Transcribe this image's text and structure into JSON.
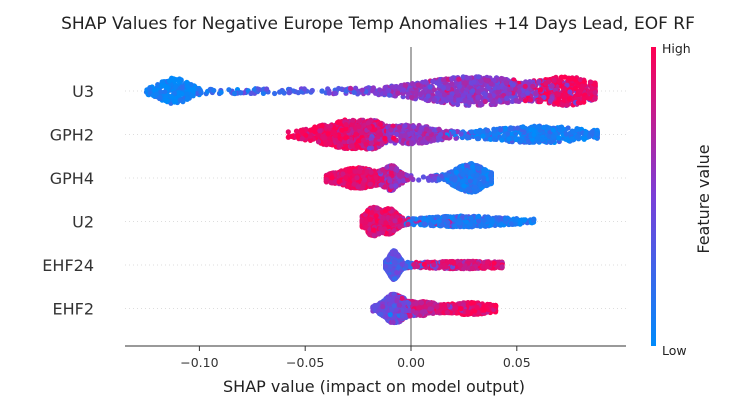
{
  "chart_data": {
    "type": "scatter",
    "title": "SHAP Values for Negative Europe Temp Anomalies +14 Days Lead, EOF RF",
    "xlabel": "SHAP value (impact on model output)",
    "xlim": [
      -0.135,
      0.095
    ],
    "xticks": [
      -0.1,
      -0.05,
      0.0,
      0.05
    ],
    "xtick_labels": [
      "−0.10",
      "−0.05",
      "0.00",
      "0.05"
    ],
    "features": [
      "U3",
      "GPH2",
      "GPH4",
      "U2",
      "EHF24",
      "EHF2"
    ],
    "colorbar": {
      "label": "Feature value",
      "high_label": "High",
      "low_label": "Low",
      "low_color": "#008bfb",
      "high_color": "#ff0052"
    },
    "rows": [
      {
        "feature": "U3",
        "min": -0.125,
        "max": 0.087,
        "mode": 0.03,
        "mode_width": 0.022,
        "clusters": [
          {
            "at": -0.112,
            "width": 0.006,
            "weight": 0.12,
            "value": 0.05
          },
          {
            "at": 0.03,
            "width": 0.022,
            "weight": 0.5,
            "value": 0.55
          },
          {
            "at": 0.075,
            "width": 0.01,
            "weight": 0.2,
            "value": 0.95
          }
        ]
      },
      {
        "feature": "GPH2",
        "min": -0.058,
        "max": 0.088,
        "mode": -0.022,
        "mode_width": 0.008,
        "clusters": [
          {
            "at": -0.035,
            "width": 0.01,
            "weight": 0.25,
            "value": 0.95
          },
          {
            "at": -0.022,
            "width": 0.006,
            "weight": 0.2,
            "value": 0.85
          },
          {
            "at": 0.0,
            "width": 0.01,
            "weight": 0.2,
            "value": 0.6
          },
          {
            "at": 0.06,
            "width": 0.018,
            "weight": 0.3,
            "value": 0.1
          }
        ]
      },
      {
        "feature": "GPH4",
        "min": -0.04,
        "max": 0.038,
        "mode": -0.01,
        "mode_width": 0.003,
        "clusters": [
          {
            "at": -0.025,
            "width": 0.008,
            "weight": 0.35,
            "value": 0.92
          },
          {
            "at": -0.009,
            "width": 0.003,
            "weight": 0.15,
            "value": 0.65
          },
          {
            "at": 0.028,
            "width": 0.006,
            "weight": 0.4,
            "value": 0.12
          }
        ]
      },
      {
        "feature": "U2",
        "min": -0.023,
        "max": 0.058,
        "mode": -0.018,
        "mode_width": 0.004,
        "clusters": [
          {
            "at": -0.018,
            "width": 0.003,
            "weight": 0.3,
            "value": 0.9
          },
          {
            "at": -0.01,
            "width": 0.003,
            "weight": 0.25,
            "value": 0.88
          },
          {
            "at": 0.025,
            "width": 0.014,
            "weight": 0.35,
            "value": 0.12
          }
        ]
      },
      {
        "feature": "EHF24",
        "min": -0.012,
        "max": 0.043,
        "mode": -0.008,
        "mode_width": 0.002,
        "clusters": [
          {
            "at": -0.008,
            "width": 0.002,
            "weight": 0.55,
            "value": 0.35
          },
          {
            "at": 0.025,
            "width": 0.012,
            "weight": 0.35,
            "value": 0.88
          }
        ]
      },
      {
        "feature": "EHF2",
        "min": -0.018,
        "max": 0.04,
        "mode": -0.008,
        "mode_width": 0.003,
        "clusters": [
          {
            "at": -0.008,
            "width": 0.004,
            "weight": 0.45,
            "value": 0.45
          },
          {
            "at": 0.005,
            "width": 0.006,
            "weight": 0.25,
            "value": 0.8
          },
          {
            "at": 0.028,
            "width": 0.007,
            "weight": 0.25,
            "value": 0.95
          }
        ]
      }
    ]
  }
}
